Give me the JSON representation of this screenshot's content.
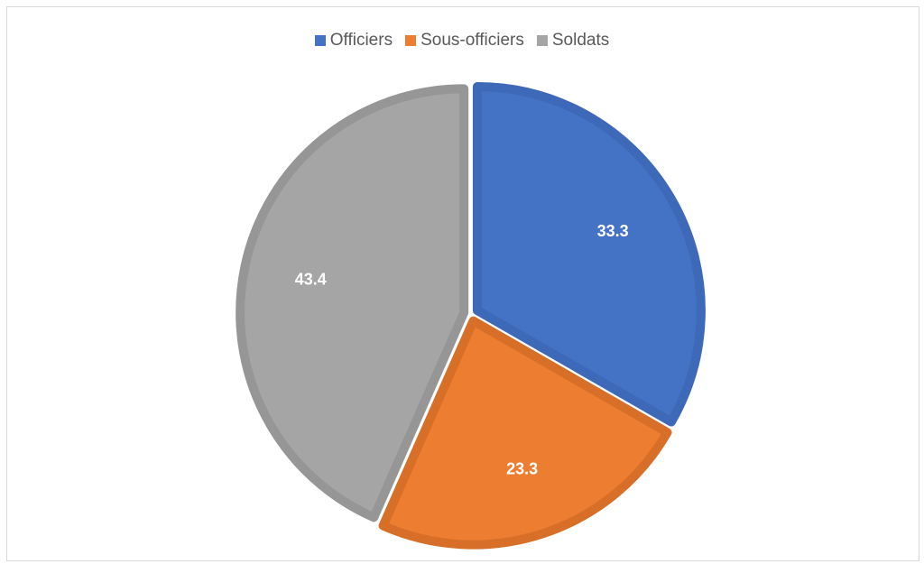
{
  "chart_data": {
    "type": "pie",
    "categories": [
      "Officiers",
      "Sous-officiers",
      "Soldats"
    ],
    "values": [
      33.3,
      23.3,
      43.4
    ],
    "data_labels": [
      "33.3",
      "23.3",
      "43.4"
    ],
    "colors": [
      "#4472C4",
      "#ED7D31",
      "#A5A5A5"
    ],
    "border_colors": [
      "#3E68B8",
      "#D86F28",
      "#969696"
    ],
    "title": "",
    "legend": {
      "position": "top",
      "entries": [
        "Officiers",
        "Sous-officiers",
        "Soldats"
      ]
    },
    "start_angle": "12 o'clock",
    "direction": "clockwise"
  }
}
